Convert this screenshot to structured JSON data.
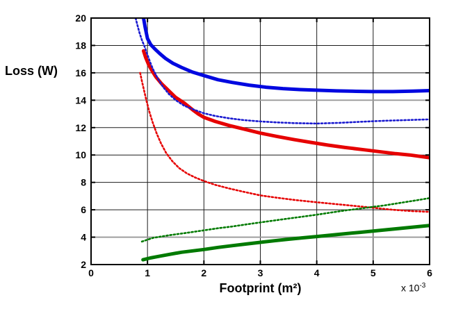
{
  "figure": {
    "background": "#ffffff",
    "ylabel": "Loss (W)",
    "xlabel": "Footprint (m²)",
    "multiplier_base": "x 10",
    "multiplier_exponent": "-3"
  },
  "chart_data": {
    "type": "line",
    "title": "",
    "xlabel": "Footprint (m²)",
    "ylabel": "Loss (W)",
    "x_scale_note": "x 10^-3",
    "xlim": [
      0,
      6
    ],
    "ylim": [
      2,
      20
    ],
    "x_ticks": [
      "0",
      "1",
      "2",
      "3",
      "4",
      "5",
      "6"
    ],
    "y_ticks": [
      "2",
      "4",
      "6",
      "8",
      "10",
      "12",
      "14",
      "16",
      "18",
      "20"
    ],
    "grid": true,
    "legend_position": "none",
    "axis_color": "#000000",
    "grid_color": "#1c1c1c",
    "grid_color_light": "#999999",
    "light_horizontal_gridlines": [
      4,
      14
    ],
    "series": [
      {
        "name": "green-solid",
        "color": "#007a00",
        "line_style": "solid",
        "line_width": 5,
        "points": [
          [
            0.92,
            2.35
          ],
          [
            1.05,
            2.48
          ],
          [
            1.2,
            2.6
          ],
          [
            1.4,
            2.75
          ],
          [
            1.6,
            2.9
          ],
          [
            1.8,
            3.0
          ],
          [
            2.0,
            3.1
          ],
          [
            2.25,
            3.25
          ],
          [
            2.5,
            3.38
          ],
          [
            2.75,
            3.5
          ],
          [
            3.0,
            3.62
          ],
          [
            3.25,
            3.74
          ],
          [
            3.5,
            3.85
          ],
          [
            3.75,
            3.95
          ],
          [
            4.0,
            4.05
          ],
          [
            4.25,
            4.15
          ],
          [
            4.5,
            4.25
          ],
          [
            4.75,
            4.35
          ],
          [
            5.0,
            4.45
          ],
          [
            5.25,
            4.55
          ],
          [
            5.5,
            4.65
          ],
          [
            5.75,
            4.75
          ],
          [
            6.0,
            4.85
          ]
        ]
      },
      {
        "name": "red-solid",
        "color": "#e60000",
        "line_style": "solid",
        "line_width": 5,
        "points": [
          [
            0.93,
            17.6
          ],
          [
            0.97,
            17.1
          ],
          [
            1.02,
            16.6
          ],
          [
            1.08,
            16.15
          ],
          [
            1.15,
            15.7
          ],
          [
            1.25,
            15.2
          ],
          [
            1.35,
            14.8
          ],
          [
            1.5,
            14.2
          ],
          [
            1.65,
            13.8
          ],
          [
            1.8,
            13.3
          ],
          [
            1.9,
            13.0
          ],
          [
            2.0,
            12.75
          ],
          [
            2.2,
            12.45
          ],
          [
            2.45,
            12.15
          ],
          [
            2.7,
            11.9
          ],
          [
            3.0,
            11.6
          ],
          [
            3.3,
            11.35
          ],
          [
            3.6,
            11.12
          ],
          [
            3.9,
            10.92
          ],
          [
            4.2,
            10.72
          ],
          [
            4.5,
            10.55
          ],
          [
            4.8,
            10.4
          ],
          [
            5.1,
            10.25
          ],
          [
            5.4,
            10.1
          ],
          [
            5.65,
            10.0
          ],
          [
            6.0,
            9.8
          ]
        ]
      },
      {
        "name": "blue-solid",
        "color": "#0008e0",
        "line_style": "solid",
        "line_width": 5,
        "points": [
          [
            0.93,
            20.0
          ],
          [
            0.96,
            19.3
          ],
          [
            1.0,
            18.5
          ],
          [
            1.06,
            18.05
          ],
          [
            1.13,
            17.75
          ],
          [
            1.22,
            17.4
          ],
          [
            1.32,
            17.05
          ],
          [
            1.45,
            16.7
          ],
          [
            1.6,
            16.4
          ],
          [
            1.8,
            16.05
          ],
          [
            2.0,
            15.8
          ],
          [
            2.25,
            15.5
          ],
          [
            2.5,
            15.3
          ],
          [
            2.8,
            15.1
          ],
          [
            3.1,
            14.95
          ],
          [
            3.4,
            14.85
          ],
          [
            3.7,
            14.78
          ],
          [
            4.0,
            14.73
          ],
          [
            4.35,
            14.68
          ],
          [
            4.7,
            14.65
          ],
          [
            5.0,
            14.63
          ],
          [
            5.35,
            14.63
          ],
          [
            5.7,
            14.66
          ],
          [
            6.0,
            14.7
          ]
        ]
      },
      {
        "name": "red-dotted",
        "color": "#e60000",
        "line_style": "dotted",
        "line_width": 2.6,
        "points": [
          [
            0.87,
            16.0
          ],
          [
            0.9,
            15.4
          ],
          [
            0.94,
            14.7
          ],
          [
            0.98,
            14.0
          ],
          [
            1.03,
            13.2
          ],
          [
            1.09,
            12.4
          ],
          [
            1.16,
            11.6
          ],
          [
            1.24,
            10.85
          ],
          [
            1.33,
            10.15
          ],
          [
            1.44,
            9.55
          ],
          [
            1.56,
            9.05
          ],
          [
            1.7,
            8.65
          ],
          [
            1.85,
            8.35
          ],
          [
            2.0,
            8.1
          ],
          [
            2.2,
            7.82
          ],
          [
            2.45,
            7.55
          ],
          [
            2.7,
            7.32
          ],
          [
            3.0,
            7.05
          ],
          [
            3.3,
            6.88
          ],
          [
            3.6,
            6.72
          ],
          [
            4.0,
            6.55
          ],
          [
            4.5,
            6.35
          ],
          [
            4.93,
            6.18
          ],
          [
            5.35,
            6.0
          ],
          [
            5.7,
            5.9
          ],
          [
            6.0,
            5.85
          ]
        ]
      },
      {
        "name": "blue-dotted",
        "color": "#1a1ad0",
        "line_style": "dotted",
        "line_width": 2.6,
        "points": [
          [
            0.79,
            20.0
          ],
          [
            0.82,
            19.5
          ],
          [
            0.86,
            18.9
          ],
          [
            0.9,
            18.4
          ],
          [
            0.95,
            17.9
          ],
          [
            1.0,
            17.3
          ],
          [
            1.05,
            16.75
          ],
          [
            1.1,
            16.25
          ],
          [
            1.18,
            15.6
          ],
          [
            1.27,
            15.0
          ],
          [
            1.38,
            14.45
          ],
          [
            1.5,
            14.0
          ],
          [
            1.65,
            13.6
          ],
          [
            1.8,
            13.35
          ],
          [
            2.0,
            13.05
          ],
          [
            2.2,
            12.85
          ],
          [
            2.45,
            12.68
          ],
          [
            2.7,
            12.55
          ],
          [
            3.0,
            12.45
          ],
          [
            3.3,
            12.38
          ],
          [
            3.6,
            12.33
          ],
          [
            4.0,
            12.3
          ],
          [
            4.4,
            12.35
          ],
          [
            4.8,
            12.43
          ],
          [
            5.2,
            12.5
          ],
          [
            5.6,
            12.55
          ],
          [
            6.0,
            12.6
          ]
        ]
      },
      {
        "name": "green-dotted",
        "color": "#007a00",
        "line_style": "dotted",
        "line_width": 2.6,
        "points": [
          [
            0.9,
            3.68
          ],
          [
            1.1,
            3.95
          ],
          [
            1.4,
            4.15
          ],
          [
            1.75,
            4.35
          ],
          [
            2.0,
            4.5
          ],
          [
            2.25,
            4.65
          ],
          [
            2.5,
            4.78
          ],
          [
            2.75,
            4.93
          ],
          [
            3.0,
            5.08
          ],
          [
            3.25,
            5.22
          ],
          [
            3.5,
            5.36
          ],
          [
            3.75,
            5.5
          ],
          [
            4.0,
            5.64
          ],
          [
            4.25,
            5.8
          ],
          [
            4.5,
            5.95
          ],
          [
            4.7,
            6.05
          ],
          [
            4.93,
            6.18
          ],
          [
            5.2,
            6.32
          ],
          [
            5.5,
            6.52
          ],
          [
            5.75,
            6.68
          ],
          [
            6.0,
            6.85
          ]
        ]
      }
    ]
  }
}
